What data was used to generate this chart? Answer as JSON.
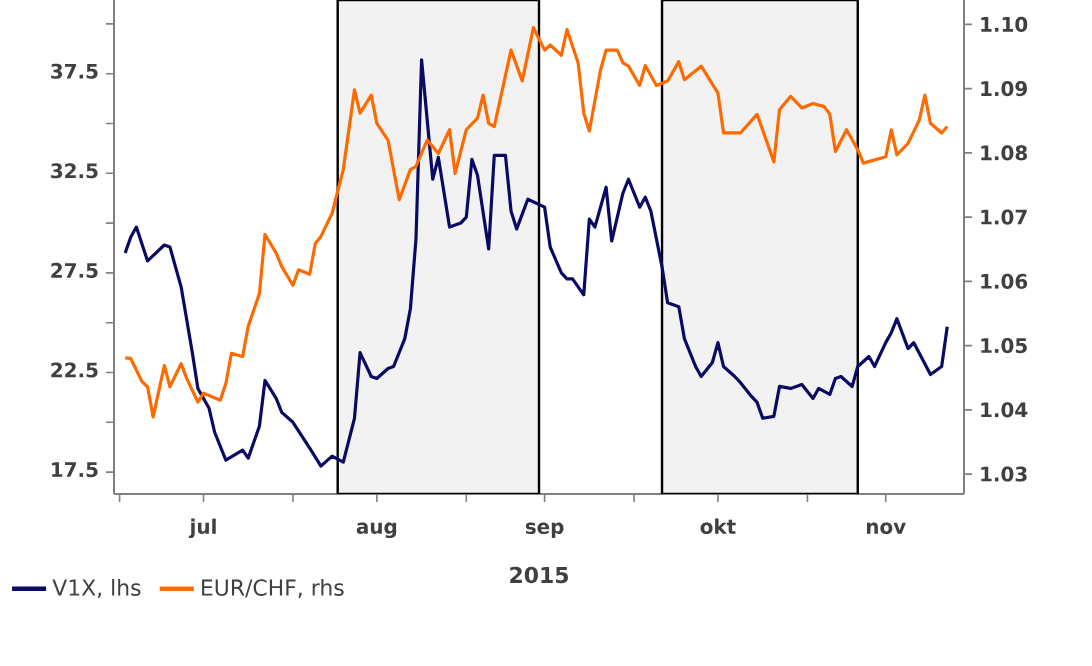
{
  "chart_data": {
    "type": "line",
    "xlabel": "2015",
    "x": [
      "2015-07-02",
      "2015-07-03",
      "2015-07-04",
      "2015-07-06",
      "2015-07-09",
      "2015-07-10",
      "2015-07-12",
      "2015-07-14",
      "2015-07-15",
      "2015-07-17",
      "2015-07-18",
      "2015-07-20",
      "2015-07-23",
      "2015-07-24",
      "2015-07-26",
      "2015-07-27",
      "2015-07-29",
      "2015-07-30",
      "2015-08-01",
      "2015-08-04",
      "2015-08-06",
      "2015-08-08",
      "2015-08-10",
      "2015-08-12",
      "2015-08-13",
      "2015-08-15",
      "2015-08-16",
      "2015-08-18",
      "2015-08-19",
      "2015-08-21",
      "2015-08-22",
      "2015-08-23",
      "2015-08-24",
      "2015-08-26",
      "2015-08-27",
      "2015-08-29",
      "2015-08-31",
      "2015-09-01",
      "2015-09-02",
      "2015-09-03",
      "2015-09-05",
      "2015-09-06",
      "2015-09-08",
      "2015-09-09",
      "2015-09-10",
      "2015-09-12",
      "2015-09-15",
      "2015-09-16",
      "2015-09-18",
      "2015-09-19",
      "2015-09-20",
      "2015-09-22",
      "2015-09-23",
      "2015-09-24",
      "2015-09-26",
      "2015-09-27",
      "2015-09-29",
      "2015-09-30",
      "2015-10-02",
      "2015-10-03",
      "2015-10-04",
      "2015-10-06",
      "2015-10-07",
      "2015-10-09",
      "2015-10-10",
      "2015-10-12",
      "2015-10-13",
      "2015-10-15",
      "2015-10-16",
      "2015-10-17",
      "2015-10-19",
      "2015-10-20",
      "2015-10-22",
      "2015-10-23",
      "2015-10-24",
      "2015-10-26",
      "2015-10-27",
      "2015-10-29",
      "2015-10-31",
      "2015-11-02",
      "2015-11-03",
      "2015-11-05",
      "2015-11-06",
      "2015-11-07",
      "2015-11-09",
      "2015-11-10",
      "2015-11-12",
      "2015-11-13",
      "2015-11-15",
      "2015-11-16",
      "2015-11-17",
      "2015-11-19",
      "2015-11-20",
      "2015-11-23",
      "2015-11-25",
      "2015-11-26"
    ],
    "series": [
      {
        "name": "V1X, lhs",
        "color": "#0a0a64",
        "values": [
          28.5,
          29.3,
          29.8,
          28.1,
          28.9,
          28.8,
          26.8,
          23.5,
          21.7,
          20.7,
          19.5,
          18.1,
          18.6,
          18.2,
          19.8,
          22.1,
          21.2,
          20.5,
          20.0,
          18.7,
          17.8,
          18.3,
          18.0,
          20.2,
          23.5,
          22.3,
          22.2,
          22.7,
          22.8,
          24.2,
          25.7,
          29.2,
          38.2,
          32.2,
          33.3,
          29.8,
          30.0,
          30.3,
          33.2,
          32.4,
          28.7,
          33.4,
          33.4,
          30.6,
          29.7,
          31.2,
          30.8,
          28.8,
          27.5,
          27.2,
          27.2,
          26.4,
          30.2,
          29.8,
          31.8,
          29.1,
          31.5,
          32.2,
          30.8,
          31.3,
          30.6,
          27.8,
          26.0,
          25.8,
          24.2,
          22.8,
          22.3,
          23.0,
          24.0,
          22.8,
          22.3,
          22.0,
          21.3,
          21.0,
          20.2,
          20.3,
          21.8,
          21.7,
          21.9,
          21.2,
          21.7,
          21.4,
          22.2,
          22.3,
          21.8,
          22.8,
          23.3,
          22.8,
          24.0,
          24.5,
          25.2,
          23.7,
          24.0,
          22.4,
          22.8,
          24.8
        ]
      },
      {
        "name": "EUR/CHF, rhs",
        "color": "#ff6a00",
        "axis": "y2",
        "x": [
          "2015-07-02",
          "2015-07-03",
          "2015-07-05",
          "2015-07-06",
          "2015-07-07",
          "2015-07-09",
          "2015-07-10",
          "2015-07-12",
          "2015-07-13",
          "2015-07-15",
          "2015-07-16",
          "2015-07-19",
          "2015-07-20",
          "2015-07-21",
          "2015-07-23",
          "2015-07-24",
          "2015-07-26",
          "2015-07-27",
          "2015-07-29",
          "2015-07-30",
          "2015-08-01",
          "2015-08-02",
          "2015-08-04",
          "2015-08-05",
          "2015-08-06",
          "2015-08-08",
          "2015-08-10",
          "2015-08-12",
          "2015-08-13",
          "2015-08-15",
          "2015-08-16",
          "2015-08-18",
          "2015-08-20",
          "2015-08-22",
          "2015-08-23",
          "2015-08-25",
          "2015-08-27",
          "2015-08-29",
          "2015-08-30",
          "2015-09-01",
          "2015-09-03",
          "2015-09-04",
          "2015-09-05",
          "2015-09-06",
          "2015-09-09",
          "2015-09-11",
          "2015-09-13",
          "2015-09-15",
          "2015-09-16",
          "2015-09-18",
          "2015-09-19",
          "2015-09-21",
          "2015-09-22",
          "2015-09-23",
          "2015-09-25",
          "2015-09-26",
          "2015-09-28",
          "2015-09-29",
          "2015-09-30",
          "2015-10-02",
          "2015-10-03",
          "2015-10-05",
          "2015-10-07",
          "2015-10-09",
          "2015-10-10",
          "2015-10-13",
          "2015-10-16",
          "2015-10-17",
          "2015-10-20",
          "2015-10-23",
          "2015-10-26",
          "2015-10-27",
          "2015-10-29",
          "2015-10-31",
          "2015-11-02",
          "2015-11-04",
          "2015-11-05",
          "2015-11-06",
          "2015-11-08",
          "2015-11-10",
          "2015-11-11",
          "2015-11-15",
          "2015-11-16",
          "2015-11-17",
          "2015-11-19",
          "2015-11-21",
          "2015-11-22",
          "2015-11-23",
          "2015-11-25",
          "2015-11-26"
        ],
        "values": [
          1.0481,
          1.048,
          1.0444,
          1.0436,
          1.0389,
          1.0469,
          1.0436,
          1.0472,
          1.0449,
          1.0412,
          1.0426,
          1.0415,
          1.0441,
          1.0488,
          1.0483,
          1.053,
          1.0581,
          1.0673,
          1.0644,
          1.0623,
          1.0594,
          1.0618,
          1.0611,
          1.0659,
          1.067,
          1.0706,
          1.0774,
          1.0898,
          1.0862,
          1.089,
          1.0846,
          1.082,
          1.0727,
          1.0774,
          1.0779,
          1.082,
          1.0799,
          1.0836,
          1.0768,
          1.0836,
          1.0854,
          1.089,
          1.0846,
          1.0841,
          1.096,
          1.0912,
          1.0995,
          1.096,
          1.0968,
          1.0952,
          1.0992,
          1.094,
          1.0862,
          1.0834,
          1.0929,
          1.096,
          1.096,
          1.094,
          1.0935,
          1.0905,
          1.0936,
          1.0905,
          1.0912,
          1.0942,
          1.0914,
          1.0935,
          1.0893,
          1.0831,
          1.0831,
          1.086,
          1.0786,
          1.0867,
          1.0888,
          1.087,
          1.0877,
          1.0872,
          1.086,
          1.0802,
          1.0836,
          1.0805,
          1.0784,
          1.0794,
          1.0836,
          1.0797,
          1.0815,
          1.0851,
          1.089,
          1.0846,
          1.0831,
          1.0841
        ]
      }
    ],
    "xlim": [
      "2015-06-30",
      "2015-11-29"
    ],
    "xticks": [
      {
        "value": "2015-07-01",
        "label": null
      },
      {
        "value": "2015-07-16",
        "label": "jul"
      },
      {
        "value": "2015-08-01",
        "label": null
      },
      {
        "value": "2015-08-16",
        "label": "aug"
      },
      {
        "value": "2015-09-01",
        "label": null
      },
      {
        "value": "2015-09-15",
        "label": "sep"
      },
      {
        "value": "2015-10-01",
        "label": null
      },
      {
        "value": "2015-10-16",
        "label": "okt"
      },
      {
        "value": "2015-11-01",
        "label": null
      },
      {
        "value": "2015-11-15",
        "label": "nov"
      }
    ],
    "ylim": [
      16.4,
      41.2
    ],
    "yticks": [
      17.5,
      {
        "value": 20,
        "label": null
      },
      22.5,
      {
        "value": 25,
        "label": null
      },
      27.5,
      {
        "value": 30,
        "label": null
      },
      32.5,
      {
        "value": 35,
        "label": null
      },
      37.5,
      {
        "value": 40,
        "label": null
      }
    ],
    "y2lim": [
      1.0269,
      1.1038
    ],
    "y2ticks": [
      1.03,
      1.04,
      1.05,
      1.06,
      1.07,
      1.08,
      1.09,
      {
        "value": 1.1,
        "label": "1.10"
      }
    ],
    "bands": [
      {
        "axis": "x",
        "from": "2015-08-09",
        "to": "2015-09-14",
        "color": "#f2f2f2"
      },
      {
        "axis": "x",
        "from": "2015-10-06",
        "to": "2015-11-10",
        "color": "#f2f2f2"
      }
    ],
    "legend": "bottom"
  }
}
